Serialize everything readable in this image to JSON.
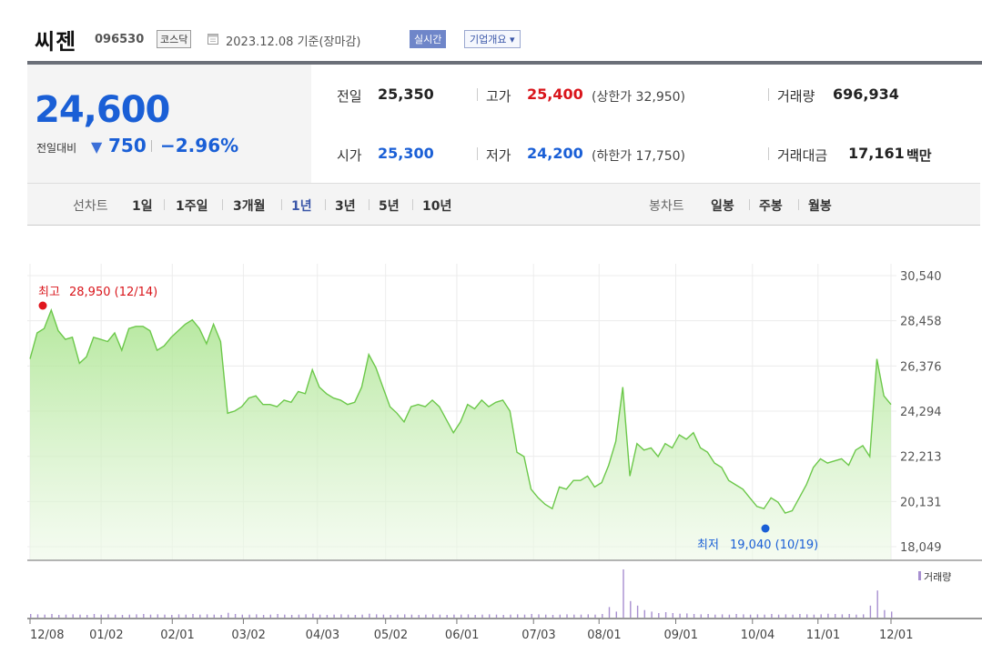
{
  "header": {
    "name": "씨젠",
    "code": "096530",
    "market": "코스닥",
    "date_text": "2023.12.08 기준(장마감)",
    "realtime_label": "실시간",
    "company_button": "기업개요 ▾"
  },
  "quote": {
    "price": "24,600",
    "change_label": "전일대비",
    "change_arrow": "▼",
    "change_value": "750",
    "change_percent": "−2.96%",
    "prev_close_label": "전일",
    "prev_close": "25,350",
    "open_label": "시가",
    "open": "25,300",
    "high_label": "고가",
    "high": "25,400",
    "upper_limit": "(상한가 32,950)",
    "low_label": "저가",
    "low": "24,200",
    "lower_limit": "(하한가 17,750)",
    "volume_label": "거래량",
    "volume": "696,934",
    "amount_label": "거래대금",
    "amount": "17,161",
    "amount_unit": "백만"
  },
  "periods": {
    "line_label": "선차트",
    "line_items": [
      "1일",
      "1주일",
      "3개월",
      "1년",
      "3년",
      "5년",
      "10년"
    ],
    "active": "1년",
    "candle_label": "봉차트",
    "candle_items": [
      "일봉",
      "주봉",
      "월봉"
    ]
  },
  "colors": {
    "up": "#d9151b",
    "down": "#1a5fd6",
    "line": "#6cc84a",
    "volume": "#a78fd0"
  },
  "chart_data": {
    "type": "area",
    "x_tick_labels": [
      "12/08",
      "01/02",
      "02/01",
      "03/02",
      "04/03",
      "05/02",
      "06/01",
      "07/03",
      "08/01",
      "09/01",
      "10/04",
      "11/01",
      "12/01"
    ],
    "y_tick_labels": [
      "30,540",
      "28,458",
      "26,376",
      "24,294",
      "22,213",
      "20,131",
      "18,049"
    ],
    "ylim": [
      18049,
      30540
    ],
    "grid": true,
    "series": [
      {
        "values": [
          26700,
          27900,
          28100,
          28950,
          28000,
          27600,
          27700,
          26500,
          26800,
          27700,
          27600,
          27500,
          27900,
          27100,
          28100,
          28200,
          28200,
          28000,
          27100,
          27300,
          27700,
          28000,
          28300,
          28500,
          28100,
          27400,
          28300,
          27500,
          24200,
          24300,
          24500,
          24900,
          25000,
          24600,
          24600,
          24500,
          24800,
          24700,
          25200,
          25100,
          26200,
          25400,
          25100,
          24900,
          24800,
          24600,
          24700,
          25400,
          26900,
          26300,
          25400,
          24500,
          24200,
          23800,
          24500,
          24600,
          24500,
          24800,
          24500,
          23900,
          23300,
          23800,
          24600,
          24400,
          24800,
          24500,
          24700,
          24800,
          24300,
          22400,
          22200,
          20700,
          20300,
          20000,
          19800,
          20800,
          20700,
          21100,
          21100,
          21300,
          20800,
          21000,
          21800,
          22900,
          25400,
          21300,
          22800,
          22500,
          22600,
          22200,
          22800,
          22600,
          23200,
          23000,
          23300,
          22600,
          22400,
          21900,
          21700,
          21100,
          20900,
          20700,
          20300,
          19900,
          19800,
          20300,
          20100,
          19600,
          19700,
          20300,
          20900,
          21700,
          22100,
          21900,
          22000,
          22100,
          21800,
          22500,
          22700,
          22200,
          26700,
          25000,
          24600
        ]
      }
    ],
    "volume_label": "거래량",
    "volume_values": [
      1.2,
      1.1,
      1.0,
      1.2,
      0.9,
      1.0,
      1.1,
      1.0,
      0.9,
      1.2,
      1.0,
      1.1,
      1.0,
      0.9,
      1.0,
      1.1,
      1.2,
      1.0,
      1.1,
      1.0,
      0.9,
      1.1,
      1.0,
      1.2,
      1.0,
      1.1,
      1.0,
      0.9,
      1.6,
      1.2,
      1.0,
      1.0,
      1.1,
      0.9,
      1.0,
      1.2,
      1.0,
      0.9,
      1.0,
      1.1,
      1.3,
      1.0,
      0.9,
      1.0,
      1.1,
      1.0,
      0.9,
      1.0,
      1.3,
      1.1,
      1.0,
      0.9,
      1.0,
      1.1,
      1.0,
      0.9,
      1.0,
      1.1,
      1.0,
      0.9,
      1.0,
      1.0,
      1.1,
      0.9,
      1.0,
      1.1,
      1.0,
      0.9,
      1.0,
      1.1,
      1.0,
      1.2,
      1.1,
      1.0,
      0.9,
      1.0,
      1.1,
      1.0,
      1.0,
      1.1,
      1.0,
      1.2,
      3.5,
      2.0,
      16.0,
      5.5,
      4.0,
      2.5,
      2.0,
      1.5,
      1.8,
      1.5,
      1.3,
      1.4,
      1.2,
      1.1,
      1.2,
      1.0,
      1.1,
      1.0,
      1.2,
      1.1,
      1.0,
      1.1,
      1.0,
      1.2,
      1.0,
      1.1,
      1.0,
      1.2,
      1.1,
      1.0,
      1.1,
      1.3,
      1.2,
      1.1,
      1.2,
      1.0,
      1.1,
      4.0,
      9.0,
      2.5,
      2.0
    ],
    "annotations": {
      "high": {
        "label": "최고",
        "value": "28,950 (12/14)"
      },
      "low": {
        "label": "최저",
        "value": "19,040 (10/19)"
      }
    }
  }
}
